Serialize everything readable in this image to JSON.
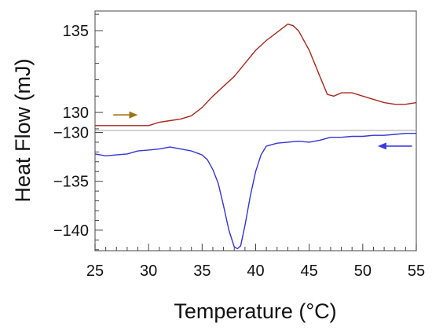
{
  "chart_data": {
    "type": "line",
    "xlabel": "Temperature (°C)",
    "ylabel": "Heat Flow (mJ)",
    "xlim": [
      25,
      55
    ],
    "x_ticks": [
      25,
      30,
      35,
      40,
      45,
      50,
      55
    ],
    "grid": false,
    "legend": "none",
    "panels": [
      {
        "id": "heating",
        "ylim": [
          128.9,
          136.2
        ],
        "y_ticks": [
          130,
          135
        ],
        "arrow": {
          "direction": "right",
          "color": "#a07214"
        },
        "series": [
          {
            "color": "#a52a1e",
            "x": [
              25,
              26,
              27,
              28,
              29,
              30,
              31,
              32,
              33,
              34,
              35,
              36,
              37,
              38,
              39,
              40,
              41,
              42,
              43,
              43.5,
              44,
              45,
              46,
              46.7,
              47.3,
              48,
              49,
              50,
              51,
              52,
              53,
              54,
              55
            ],
            "y": [
              129.2,
              129.2,
              129.2,
              129.2,
              129.2,
              129.2,
              129.4,
              129.5,
              129.6,
              129.8,
              130.3,
              131.0,
              131.6,
              132.2,
              133.0,
              133.8,
              134.4,
              134.9,
              135.4,
              135.3,
              135.0,
              133.8,
              132.2,
              131.1,
              131.0,
              131.2,
              131.2,
              131.0,
              130.8,
              130.6,
              130.5,
              130.5,
              130.6
            ]
          }
        ]
      },
      {
        "id": "cooling",
        "ylim": [
          -142.1,
          -129.8
        ],
        "y_ticks": [
          -130,
          -135,
          -140
        ],
        "arrow": {
          "direction": "left",
          "color": "#3a3ae0"
        },
        "series": [
          {
            "color": "#3535d0",
            "x": [
              25,
              26,
              27,
              28,
              29,
              30,
              31,
              32,
              33,
              34,
              35,
              35.5,
              36,
              36.5,
              37,
              37.5,
              38,
              38.3,
              38.6,
              39,
              39.5,
              40,
              40.5,
              41,
              42,
              43,
              44,
              45,
              46,
              47,
              48,
              49,
              50,
              51,
              52,
              53,
              54,
              55
            ],
            "y": [
              -132.2,
              -132.4,
              -132.3,
              -132.2,
              -131.9,
              -131.8,
              -131.7,
              -131.5,
              -131.7,
              -131.9,
              -132.3,
              -132.8,
              -133.8,
              -135.2,
              -137.5,
              -140.0,
              -141.7,
              -141.9,
              -141.6,
              -139.5,
              -136.5,
              -134.0,
              -132.3,
              -131.4,
              -131.1,
              -131.0,
              -130.9,
              -131.0,
              -130.8,
              -130.5,
              -130.5,
              -130.4,
              -130.4,
              -130.3,
              -130.3,
              -130.2,
              -130.1,
              -130.1
            ]
          }
        ]
      }
    ]
  }
}
